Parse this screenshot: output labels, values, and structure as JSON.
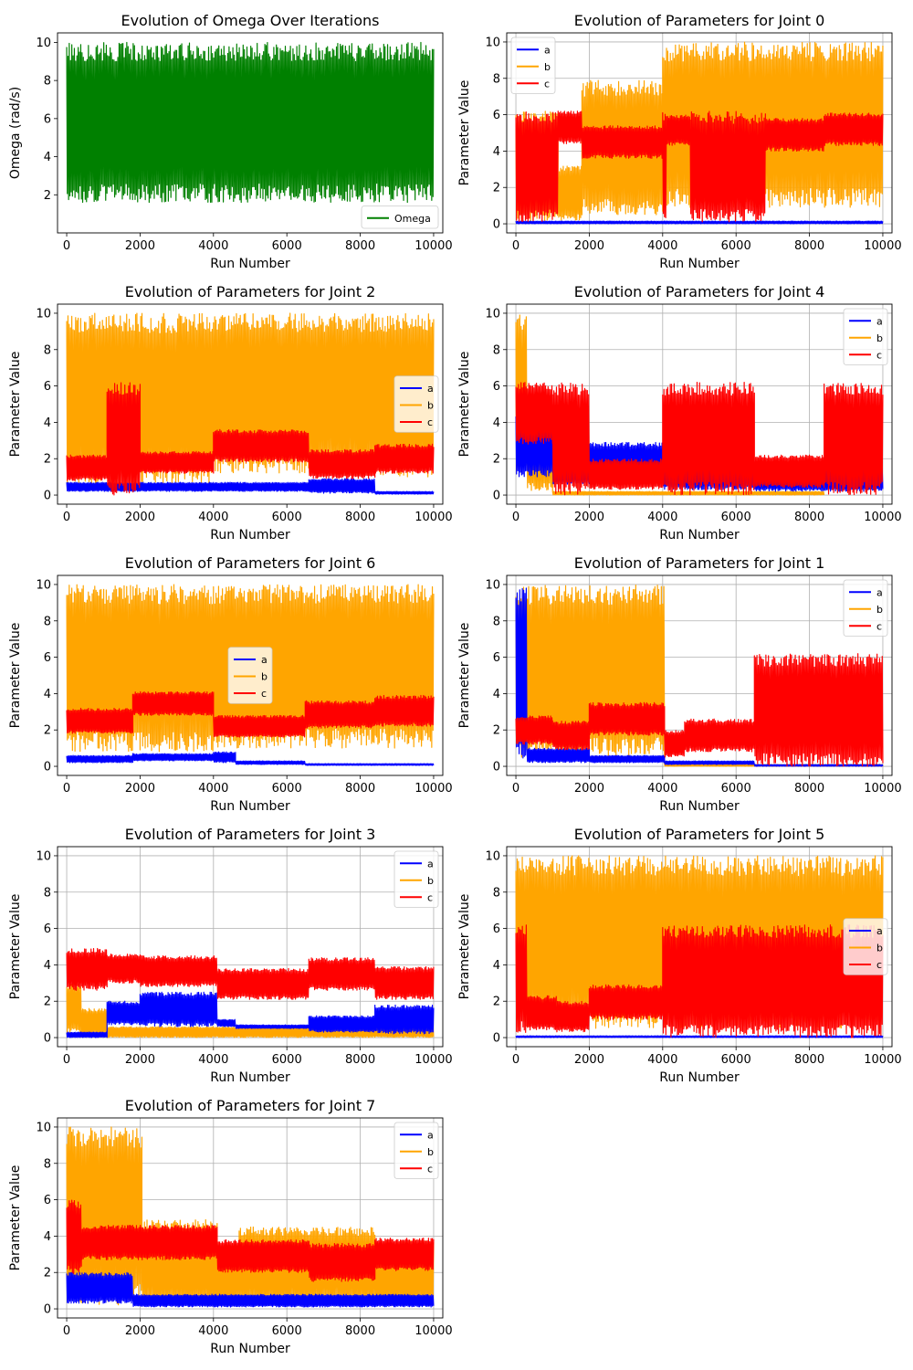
{
  "chart_data": [
    {
      "id": "omega",
      "type": "line",
      "title": "Evolution of Omega Over Iterations",
      "xlabel": "Run Number",
      "ylabel": "Omega (rad/s)",
      "xlim": [
        -250,
        10250
      ],
      "ylim": [
        0.0,
        10.5
      ],
      "xticks": [
        0,
        2000,
        4000,
        6000,
        8000,
        10000
      ],
      "yticks": [
        2,
        4,
        6,
        8,
        10
      ],
      "grid": false,
      "legend": "lower right",
      "series": [
        {
          "name": "Omega",
          "color": "#008000",
          "segments": [
            [
              0,
              10000,
              1.6,
              10.0
            ]
          ]
        }
      ]
    },
    {
      "id": "joint-0",
      "type": "line",
      "title": "Evolution of Parameters for Joint 0",
      "xlabel": "Run Number",
      "ylabel": "Parameter Value",
      "xlim": [
        -250,
        10250
      ],
      "ylim": [
        -0.5,
        10.5
      ],
      "xticks": [
        0,
        2000,
        4000,
        6000,
        8000,
        10000
      ],
      "yticks": [
        0,
        2,
        4,
        6,
        8,
        10
      ],
      "grid": true,
      "legend": "upper left",
      "series": [
        {
          "name": "b",
          "color": "#ffa500",
          "segments": [
            [
              0,
              1150,
              0.1,
              6.2
            ],
            [
              1150,
              1800,
              0.2,
              3.2
            ],
            [
              1800,
              2000,
              0.5,
              7.8
            ],
            [
              2000,
              4000,
              0.5,
              7.9
            ],
            [
              4000,
              10000,
              0.9,
              10.0
            ]
          ]
        },
        {
          "name": "a",
          "color": "#0000ff",
          "segments": [
            [
              0,
              10000,
              0.0,
              0.15
            ]
          ]
        },
        {
          "name": "c",
          "color": "#ff0000",
          "segments": [
            [
              0,
              1150,
              0.1,
              6.2
            ],
            [
              1150,
              1800,
              4.4,
              6.2
            ],
            [
              1800,
              4000,
              3.6,
              5.4
            ],
            [
              4000,
              4100,
              0.1,
              6.2
            ],
            [
              4100,
              4750,
              4.3,
              6.0
            ],
            [
              4750,
              6800,
              0.1,
              6.2
            ],
            [
              6800,
              8400,
              4.0,
              5.8
            ],
            [
              8400,
              10000,
              4.3,
              6.1
            ]
          ]
        }
      ]
    },
    {
      "id": "joint-2",
      "type": "line",
      "title": "Evolution of Parameters for Joint 2",
      "xlabel": "Run Number",
      "ylabel": "Parameter Value",
      "xlim": [
        -250,
        10250
      ],
      "ylim": [
        -0.5,
        10.5
      ],
      "xticks": [
        0,
        2000,
        4000,
        6000,
        8000,
        10000
      ],
      "yticks": [
        0,
        2,
        4,
        6,
        8,
        10
      ],
      "grid": false,
      "legend": "center right",
      "series": [
        {
          "name": "b",
          "color": "#ffa500",
          "segments": [
            [
              0,
              4000,
              0.6,
              10.0
            ],
            [
              4000,
              8400,
              1.2,
              10.0
            ],
            [
              8400,
              10000,
              1.0,
              10.0
            ]
          ]
        },
        {
          "name": "a",
          "color": "#0000ff",
          "segments": [
            [
              0,
              4000,
              0.2,
              0.7
            ],
            [
              4000,
              6600,
              0.2,
              0.7
            ],
            [
              6600,
              8400,
              0.1,
              0.9
            ],
            [
              8400,
              10000,
              0.05,
              0.2
            ]
          ]
        },
        {
          "name": "c",
          "color": "#ff0000",
          "segments": [
            [
              0,
              1100,
              0.8,
              2.2
            ],
            [
              1100,
              2000,
              0.0,
              6.2
            ],
            [
              2000,
              4000,
              1.2,
              2.4
            ],
            [
              4000,
              6600,
              1.8,
              3.6
            ],
            [
              6600,
              8400,
              0.9,
              2.5
            ],
            [
              8400,
              10000,
              1.2,
              2.8
            ]
          ]
        }
      ]
    },
    {
      "id": "joint-4",
      "type": "line",
      "title": "Evolution of Parameters for Joint 4",
      "xlabel": "Run Number",
      "ylabel": "Parameter Value",
      "xlim": [
        -250,
        10250
      ],
      "ylim": [
        -0.5,
        10.5
      ],
      "xticks": [
        0,
        2000,
        4000,
        6000,
        8000,
        10000
      ],
      "yticks": [
        0,
        2,
        4,
        6,
        8,
        10
      ],
      "grid": true,
      "legend": "upper right",
      "series": [
        {
          "name": "b",
          "color": "#ffa500",
          "segments": [
            [
              0,
              300,
              1.0,
              10.0
            ],
            [
              300,
              1000,
              0.2,
              4.2
            ],
            [
              1000,
              8400,
              0.0,
              0.2
            ]
          ]
        },
        {
          "name": "a",
          "color": "#0000ff",
          "segments": [
            [
              0,
              1000,
              1.0,
              4.4
            ],
            [
              1000,
              2000,
              0.6,
              1.9
            ],
            [
              2000,
              4000,
              0.8,
              2.9
            ],
            [
              4000,
              6500,
              0.3,
              2.0
            ],
            [
              6500,
              10000,
              0.2,
              1.5
            ]
          ]
        },
        {
          "name": "c",
          "color": "#ff0000",
          "segments": [
            [
              0,
              1000,
              2.8,
              6.2
            ],
            [
              1000,
              2000,
              0.0,
              6.2
            ],
            [
              2000,
              4000,
              0.3,
              2.0
            ],
            [
              4000,
              6500,
              0.0,
              6.2
            ],
            [
              6500,
              8400,
              0.4,
              2.2
            ],
            [
              8400,
              10000,
              0.0,
              6.2
            ]
          ]
        }
      ]
    },
    {
      "id": "joint-6",
      "type": "line",
      "title": "Evolution of Parameters for Joint 6",
      "xlabel": "Run Number",
      "ylabel": "Parameter Value",
      "xlim": [
        -250,
        10250
      ],
      "ylim": [
        -0.5,
        10.5
      ],
      "xticks": [
        0,
        2000,
        4000,
        6000,
        8000,
        10000
      ],
      "yticks": [
        0,
        2,
        4,
        6,
        8,
        10
      ],
      "grid": false,
      "legend": "center",
      "series": [
        {
          "name": "b",
          "color": "#ffa500",
          "segments": [
            [
              0,
              4000,
              0.8,
              10.0
            ],
            [
              4000,
              10000,
              1.0,
              10.0
            ]
          ]
        },
        {
          "name": "a",
          "color": "#0000ff",
          "segments": [
            [
              0,
              1800,
              0.2,
              0.6
            ],
            [
              1800,
              4000,
              0.3,
              0.7
            ],
            [
              4000,
              4600,
              0.2,
              0.8
            ],
            [
              4600,
              6500,
              0.1,
              0.3
            ],
            [
              6500,
              10000,
              0.05,
              0.15
            ]
          ]
        },
        {
          "name": "c",
          "color": "#ff0000",
          "segments": [
            [
              0,
              1800,
              1.8,
              3.2
            ],
            [
              1800,
              4000,
              2.8,
              4.1
            ],
            [
              4000,
              6500,
              1.6,
              2.8
            ],
            [
              6500,
              8400,
              2.1,
              3.6
            ],
            [
              8400,
              10000,
              2.2,
              3.9
            ]
          ]
        }
      ]
    },
    {
      "id": "joint-1",
      "type": "line",
      "title": "Evolution of Parameters for Joint 1",
      "xlabel": "Run Number",
      "ylabel": "Parameter Value",
      "xlim": [
        -250,
        10250
      ],
      "ylim": [
        -0.5,
        10.5
      ],
      "xticks": [
        0,
        2000,
        4000,
        6000,
        8000,
        10000
      ],
      "yticks": [
        0,
        2,
        4,
        6,
        8,
        10
      ],
      "grid": true,
      "legend": "upper right",
      "series": [
        {
          "name": "b",
          "color": "#ffa500",
          "segments": [
            [
              0,
              4050,
              0.5,
              10.0
            ],
            [
              4050,
              10000,
              0.0,
              0.1
            ]
          ]
        },
        {
          "name": "a",
          "color": "#0000ff",
          "segments": [
            [
              0,
              300,
              0.3,
              10.0
            ],
            [
              300,
              2000,
              0.2,
              1.0
            ],
            [
              2000,
              4050,
              0.2,
              0.6
            ],
            [
              4050,
              6500,
              0.1,
              0.3
            ],
            [
              6500,
              10000,
              0.0,
              0.1
            ]
          ]
        },
        {
          "name": "c",
          "color": "#ff0000",
          "segments": [
            [
              0,
              1000,
              1.2,
              2.8
            ],
            [
              1000,
              2000,
              0.9,
              2.5
            ],
            [
              2000,
              4050,
              1.7,
              3.5
            ],
            [
              4050,
              4600,
              0.5,
              2.0
            ],
            [
              4600,
              6500,
              0.8,
              2.6
            ],
            [
              6500,
              10000,
              0.0,
              6.2
            ]
          ]
        }
      ]
    },
    {
      "id": "joint-3",
      "type": "line",
      "title": "Evolution of Parameters for Joint 3",
      "xlabel": "Run Number",
      "ylabel": "Parameter Value",
      "xlim": [
        -250,
        10250
      ],
      "ylim": [
        -0.5,
        10.5
      ],
      "xticks": [
        0,
        2000,
        4000,
        6000,
        8000,
        10000
      ],
      "yticks": [
        0,
        2,
        4,
        6,
        8,
        10
      ],
      "grid": true,
      "legend": "upper right",
      "series": [
        {
          "name": "b",
          "color": "#ffa500",
          "segments": [
            [
              0,
              400,
              0.2,
              3.0
            ],
            [
              400,
              1100,
              0.1,
              1.6
            ],
            [
              1100,
              10000,
              0.0,
              0.6
            ]
          ]
        },
        {
          "name": "a",
          "color": "#0000ff",
          "segments": [
            [
              0,
              1100,
              0.0,
              0.3
            ],
            [
              1100,
              2000,
              0.7,
              2.0
            ],
            [
              2000,
              4100,
              0.6,
              2.5
            ],
            [
              4100,
              4600,
              0.6,
              1.0
            ],
            [
              4600,
              6600,
              0.5,
              0.7
            ],
            [
              6600,
              8400,
              0.3,
              1.2
            ],
            [
              8400,
              10000,
              0.2,
              1.8
            ]
          ]
        },
        {
          "name": "c",
          "color": "#ff0000",
          "segments": [
            [
              0,
              1100,
              2.6,
              4.9
            ],
            [
              1100,
              2000,
              3.0,
              4.6
            ],
            [
              2000,
              4100,
              2.8,
              4.5
            ],
            [
              4100,
              6600,
              2.1,
              3.8
            ],
            [
              6600,
              8400,
              2.6,
              4.4
            ],
            [
              8400,
              10000,
              2.1,
              3.9
            ]
          ]
        }
      ]
    },
    {
      "id": "joint-5",
      "type": "line",
      "title": "Evolution of Parameters for Joint 5",
      "xlabel": "Run Number",
      "ylabel": "Parameter Value",
      "xlim": [
        -250,
        10250
      ],
      "ylim": [
        -0.5,
        10.5
      ],
      "xticks": [
        0,
        2000,
        4000,
        6000,
        8000,
        10000
      ],
      "yticks": [
        0,
        2,
        4,
        6,
        8,
        10
      ],
      "grid": true,
      "legend": "center right",
      "series": [
        {
          "name": "b",
          "color": "#ffa500",
          "segments": [
            [
              0,
              10000,
              0.5,
              10.0
            ]
          ]
        },
        {
          "name": "a",
          "color": "#0000ff",
          "segments": [
            [
              0,
              10000,
              0.0,
              0.1
            ]
          ]
        },
        {
          "name": "c",
          "color": "#ff0000",
          "segments": [
            [
              0,
              300,
              0.2,
              6.2
            ],
            [
              300,
              1100,
              0.4,
              2.3
            ],
            [
              1100,
              2000,
              0.3,
              2.0
            ],
            [
              2000,
              4000,
              1.0,
              2.9
            ],
            [
              4000,
              10000,
              0.0,
              6.2
            ]
          ]
        }
      ]
    },
    {
      "id": "joint-7",
      "type": "line",
      "title": "Evolution of Parameters for Joint 7",
      "xlabel": "Run Number",
      "ylabel": "Parameter Value",
      "xlim": [
        -250,
        10250
      ],
      "ylim": [
        -0.5,
        10.5
      ],
      "xticks": [
        0,
        2000,
        4000,
        6000,
        8000,
        10000
      ],
      "yticks": [
        0,
        2,
        4,
        6,
        8,
        10
      ],
      "grid": true,
      "legend": "upper right",
      "series": [
        {
          "name": "b",
          "color": "#ffa500",
          "segments": [
            [
              0,
              2050,
              0.2,
              10.0
            ],
            [
              2050,
              4100,
              0.2,
              4.9
            ],
            [
              4100,
              4700,
              0.2,
              3.5
            ],
            [
              4700,
              8400,
              0.2,
              4.5
            ],
            [
              8400,
              10000,
              0.2,
              3.8
            ]
          ]
        },
        {
          "name": "a",
          "color": "#0000ff",
          "segments": [
            [
              0,
              1800,
              0.3,
              2.0
            ],
            [
              1800,
              10000,
              0.1,
              0.8
            ]
          ]
        },
        {
          "name": "c",
          "color": "#ff0000",
          "segments": [
            [
              0,
              400,
              1.9,
              6.0
            ],
            [
              400,
              4100,
              2.7,
              4.6
            ],
            [
              4100,
              6600,
              2.0,
              3.8
            ],
            [
              6600,
              8400,
              1.5,
              3.6
            ],
            [
              8400,
              10000,
              2.1,
              3.9
            ]
          ]
        }
      ]
    }
  ]
}
